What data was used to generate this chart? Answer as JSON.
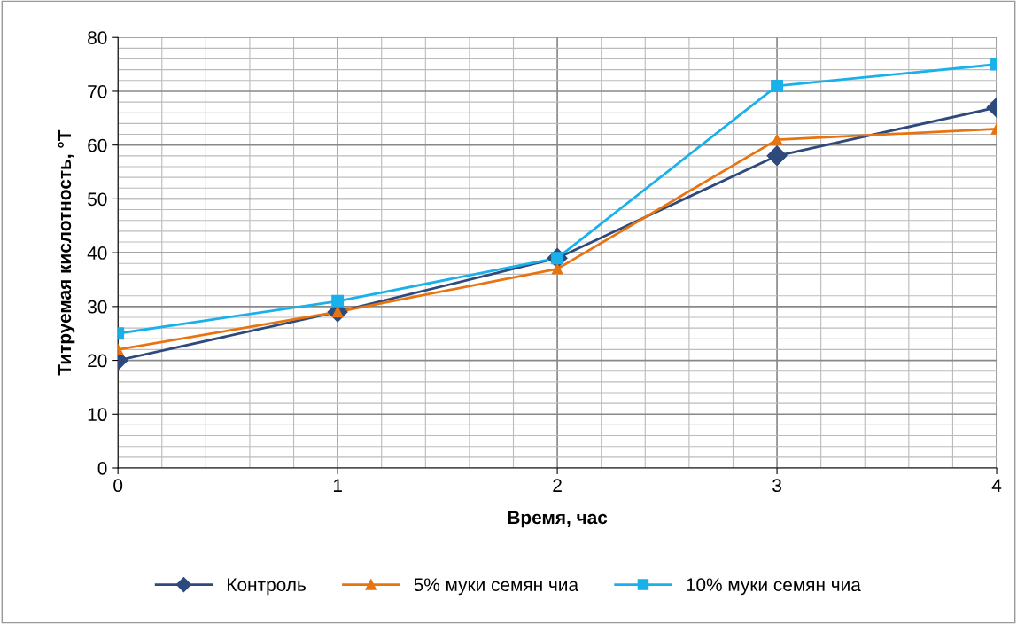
{
  "chart_data": {
    "type": "line",
    "xlabel": "Время, час",
    "ylabel": "Титруемая кислотность, °Т",
    "x": [
      0,
      1,
      2,
      3,
      4
    ],
    "xlim": [
      0,
      4
    ],
    "xticks": [
      0,
      1,
      2,
      3,
      4
    ],
    "ylim": [
      0,
      80
    ],
    "yticks": [
      0,
      10,
      20,
      30,
      40,
      50,
      60,
      70,
      80
    ],
    "grid": true,
    "legend": "bottom",
    "line_style": "solid",
    "series": [
      {
        "name": "Контроль",
        "color": "#2e4a7d",
        "marker": "diamond",
        "values": [
          20,
          29,
          39,
          58,
          67
        ]
      },
      {
        "name": "5% муки семян чиа",
        "color": "#e8730f",
        "marker": "triangle",
        "values": [
          22,
          29,
          37,
          61,
          63
        ]
      },
      {
        "name": "10% муки семян чиа",
        "color": "#1ab0ea",
        "marker": "square",
        "values": [
          25,
          31,
          39,
          71,
          75
        ]
      }
    ]
  }
}
